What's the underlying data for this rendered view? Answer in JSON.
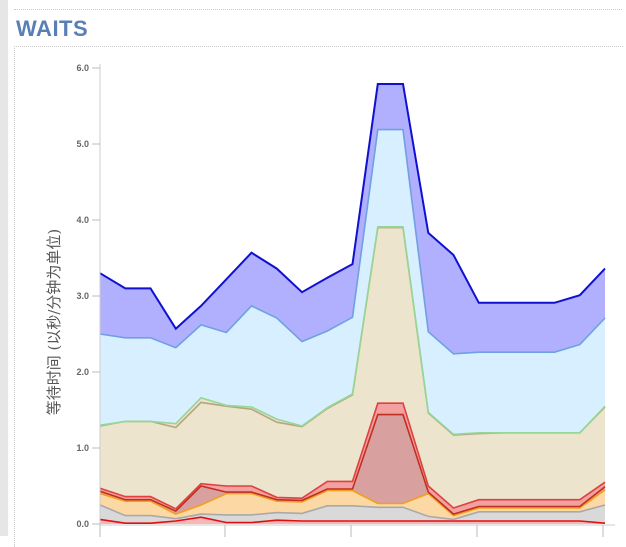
{
  "section": {
    "title": "WAITS"
  },
  "chart_data": {
    "type": "area",
    "stacked": true,
    "ylabel": "等待时间 (以秒/分钟为单位)",
    "ylim": [
      0,
      6.0
    ],
    "y_ticks": [
      "0.0",
      "1.0",
      "2.0",
      "3.0",
      "4.0",
      "5.0",
      "6.0"
    ],
    "x": [
      0,
      1,
      2,
      3,
      4,
      5,
      6,
      7,
      8,
      9,
      10,
      11,
      12,
      13,
      14,
      15,
      16,
      17,
      18,
      19,
      20
    ],
    "series": [
      {
        "color": "#e01010",
        "fill": "#f7b7b7",
        "values": [
          0.06,
          0.01,
          0.01,
          0.04,
          0.09,
          0.02,
          0.02,
          0.05,
          0.04,
          0.04,
          0.04,
          0.04,
          0.04,
          0.04,
          0.04,
          0.04,
          0.04,
          0.04,
          0.04,
          0.04,
          0.01
        ]
      },
      {
        "color": "#a9a9a9",
        "fill": "#d9d9d9",
        "values": [
          0.19,
          0.1,
          0.1,
          0.03,
          0.04,
          0.1,
          0.1,
          0.1,
          0.1,
          0.2,
          0.2,
          0.18,
          0.18,
          0.06,
          0.02,
          0.12,
          0.12,
          0.12,
          0.12,
          0.12,
          0.24
        ]
      },
      {
        "color": "#f0a020",
        "fill": "#fcd9a4",
        "values": [
          0.15,
          0.19,
          0.19,
          0.06,
          0.12,
          0.28,
          0.28,
          0.15,
          0.15,
          0.2,
          0.2,
          0.05,
          0.05,
          0.3,
          0.05,
          0.05,
          0.05,
          0.05,
          0.05,
          0.05,
          0.2
        ]
      },
      {
        "color": "#c03020",
        "fill": "#d9a0a0",
        "values": [
          0.03,
          0.02,
          0.02,
          0.04,
          0.25,
          0.02,
          0.02,
          0.02,
          0.02,
          0.02,
          0.02,
          1.17,
          1.17,
          0.02,
          0.02,
          0.02,
          0.02,
          0.02,
          0.02,
          0.02,
          0.04
        ]
      },
      {
        "color": "#e04040",
        "fill": "#f2a0a0",
        "values": [
          0.04,
          0.04,
          0.04,
          0.03,
          0.03,
          0.08,
          0.08,
          0.03,
          0.03,
          0.1,
          0.1,
          0.15,
          0.15,
          0.08,
          0.08,
          0.09,
          0.09,
          0.09,
          0.09,
          0.09,
          0.06
        ]
      },
      {
        "color": "#b6a680",
        "fill": "#ece4cc",
        "values": [
          0.82,
          0.99,
          0.99,
          1.07,
          1.07,
          1.05,
          1.01,
          0.99,
          0.94,
          0.96,
          1.14,
          2.31,
          2.31,
          0.96,
          0.96,
          0.87,
          0.88,
          0.88,
          0.88,
          0.88,
          0.99
        ]
      },
      {
        "color": "#96d796",
        "fill": "#ece4cc",
        "values": [
          0.01,
          0.0,
          0.0,
          0.05,
          0.06,
          0.01,
          0.03,
          0.04,
          0.01,
          0.01,
          0.01,
          0.01,
          0.01,
          0.01,
          0.01,
          0.01,
          0.0,
          0.0,
          0.0,
          0.0,
          0.01
        ]
      },
      {
        "color": "#6fa0e0",
        "fill": "#d8efff",
        "values": [
          1.2,
          1.1,
          1.1,
          1.0,
          0.96,
          0.96,
          1.33,
          1.33,
          1.11,
          1.01,
          1.01,
          1.28,
          1.28,
          1.06,
          1.06,
          1.06,
          1.06,
          1.06,
          1.06,
          1.16,
          1.16
        ]
      },
      {
        "color": "#1010d0",
        "fill": "#b0b0ff",
        "values": [
          0.8,
          0.65,
          0.65,
          0.25,
          0.25,
          0.7,
          0.7,
          0.65,
          0.65,
          0.7,
          0.7,
          0.6,
          0.6,
          1.3,
          1.3,
          0.65,
          0.65,
          0.65,
          0.65,
          0.65,
          0.65
        ]
      }
    ],
    "grid": false
  }
}
